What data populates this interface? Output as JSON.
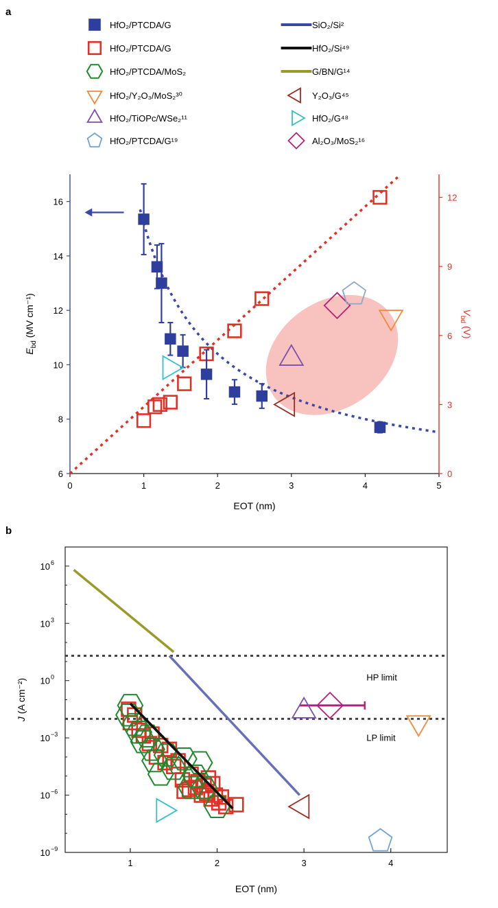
{
  "panel_a_label": "a",
  "panel_b_label": "b",
  "legend": {
    "left": [
      {
        "label": "HfO₂/PTCDA/G",
        "marker": "square-filled",
        "color": "#2e3e9c"
      },
      {
        "label": "HfO₂/PTCDA/G",
        "marker": "square-open",
        "color": "#e03127"
      },
      {
        "label": "HfO₂/PTCDA/MoS₂",
        "marker": "hexagon",
        "color": "#1e8a2c"
      },
      {
        "label": "HfO₂/Y₂O₃/MoS₂³⁰",
        "marker": "triangle-down",
        "color": "#ef8a3a"
      },
      {
        "label": "HfO₂/TiOPc/WSe₂¹¹",
        "marker": "triangle-up",
        "color": "#7a4fae"
      },
      {
        "label": "HfO₂/PTCDA/G¹⁹",
        "marker": "pentagon",
        "color": "#6fa4d4"
      }
    ],
    "right": [
      {
        "label": "SiO₂/Si²",
        "marker": "line",
        "color": "#3948a6"
      },
      {
        "label": "HfO₂/Si⁴⁹",
        "marker": "line",
        "color": "#111111"
      },
      {
        "label": "G/BN/G¹⁴",
        "marker": "line",
        "color": "#9a9a2a"
      },
      {
        "label": "Y₂O₃/G⁴⁵",
        "marker": "triangle-left",
        "color": "#9b2d22"
      },
      {
        "label": "HfO₂/G⁴⁸",
        "marker": "triangle-right",
        "color": "#33c0c8"
      },
      {
        "label": "Al₂O₃/MoS₂¹⁶",
        "marker": "diamond",
        "color": "#b0227a"
      }
    ]
  },
  "chart_data": [
    {
      "type": "scatter",
      "panel": "a",
      "xlabel": "EOT (nm)",
      "ylabel": "E_bd (MV cm⁻¹)",
      "ylabel_main": "E",
      "ylabel_sub": "bd",
      "ylabel_rest": " (MV cm⁻¹)",
      "y2label_main": "V",
      "y2label_sub": "bd",
      "y2label_rest": " (V)",
      "y2label": "V_bd (V)",
      "xlim": [
        0,
        5
      ],
      "ylim": [
        6,
        17
      ],
      "y2lim": [
        0,
        13
      ],
      "xticks": [
        0,
        1,
        2,
        3,
        4,
        5
      ],
      "xtick_labels": [
        "0",
        "1",
        "2",
        "3",
        "4",
        "5"
      ],
      "yticks": [
        6,
        8,
        10,
        12,
        14,
        16
      ],
      "ytick_labels": [
        "6",
        "8",
        "10",
        "12",
        "14",
        "16"
      ],
      "y2ticks": [
        0,
        3,
        6,
        9,
        12
      ],
      "y2tick_labels": [
        "0",
        "3",
        "6",
        "9",
        "12"
      ],
      "arrow_direction": "left",
      "series": [
        {
          "name": "HfO₂/PTCDA/G (E_bd)",
          "axis": "left",
          "x": [
            1.0,
            1.18,
            1.24,
            1.36,
            1.53,
            1.85,
            2.23,
            2.6,
            4.2
          ],
          "y": [
            15.35,
            13.6,
            13.0,
            10.95,
            10.5,
            9.65,
            9.0,
            8.85,
            7.7
          ],
          "yerr": [
            1.3,
            0.8,
            1.45,
            0.6,
            0.6,
            0.9,
            0.45,
            0.45,
            0.2
          ]
        },
        {
          "name": "HfO₂/PTCDA/G (V_bd)",
          "axis": "right",
          "x": [
            1.0,
            1.15,
            1.22,
            1.36,
            1.55,
            1.85,
            2.23,
            2.6,
            4.2
          ],
          "y": [
            2.3,
            2.9,
            3.0,
            3.1,
            3.9,
            5.2,
            6.2,
            7.6,
            12.0
          ]
        },
        {
          "name": "HfO₂/PTCDA/MoS₂ fit",
          "axis": "left",
          "style": "dotted-fit"
        },
        {
          "name": "V_bd linear fit",
          "axis": "right",
          "slope_v_per_nm": 2.9
        },
        {
          "name": "HfO₂/G⁴⁸",
          "axis": "right",
          "x": [
            1.35
          ],
          "y": [
            4.6
          ]
        },
        {
          "name": "HfO₂/TiOPc/WSe₂¹¹",
          "axis": "right",
          "x": [
            3.0
          ],
          "y": [
            5.0
          ]
        },
        {
          "name": "Y₂O₃/G⁴⁵",
          "axis": "right",
          "x": [
            2.95
          ],
          "y": [
            3.0
          ]
        },
        {
          "name": "Al₂O₃/MoS₂¹⁶",
          "axis": "right",
          "x": [
            3.62
          ],
          "y": [
            7.3
          ]
        },
        {
          "name": "HfO₂/PTCDA/G¹⁹",
          "axis": "right",
          "x": [
            3.85
          ],
          "y": [
            7.8
          ]
        },
        {
          "name": "HfO₂/Y₂O₃/MoS₂³⁰",
          "axis": "right",
          "x": [
            4.35
          ],
          "y": [
            6.8
          ]
        }
      ]
    },
    {
      "type": "scatter",
      "panel": "b",
      "xlabel": "EOT (nm)",
      "ylabel": "J (A cm⁻²)",
      "ylabel_main": "J",
      "ylabel_rest": " (A cm⁻²)",
      "yscale": "log",
      "xlim": [
        0.25,
        4.65
      ],
      "ylim_log10": [
        -9,
        7
      ],
      "xticks": [
        1,
        2,
        3,
        4
      ],
      "xtick_labels": [
        "1",
        "2",
        "3",
        "4"
      ],
      "yticks_log10": [
        -9,
        -6,
        -3,
        0,
        3,
        6
      ],
      "ytick_labels_base": [
        "10",
        "10",
        "10",
        "10",
        "10",
        "10"
      ],
      "ytick_labels_exp": [
        "−9",
        "−6",
        "−3",
        "0",
        "3",
        "6"
      ],
      "hp_limit_log10": 1.3,
      "lp_limit_log10": -2.0,
      "annotations": [
        "HP limit",
        "LP limit"
      ],
      "lines": [
        {
          "name": "G/BN/G¹⁴",
          "x": [
            0.35,
            1.5
          ],
          "log10_y": [
            5.8,
            1.5
          ]
        },
        {
          "name": "SiO₂/Si²",
          "x": [
            1.45,
            2.95
          ],
          "log10_y": [
            1.3,
            -6.0
          ]
        },
        {
          "name": "HfO₂/Si⁴⁹",
          "x": [
            1.0,
            2.18
          ],
          "log10_y": [
            -1.2,
            -6.7
          ]
        }
      ],
      "series": [
        {
          "name": "HfO₂/PTCDA/G",
          "x": [
            0.98,
            1.0,
            1.05,
            1.1,
            1.15,
            1.22,
            1.3,
            1.35,
            1.4,
            1.45,
            1.5,
            1.55,
            1.6,
            1.62,
            1.7,
            1.75,
            1.78,
            1.82,
            1.85,
            1.88,
            1.9,
            1.93,
            1.95,
            1.98,
            2.02,
            2.05,
            2.1,
            2.22,
            1.25,
            1.68
          ],
          "log10_y": [
            -1.5,
            -2.2,
            -1.8,
            -2.6,
            -2.9,
            -3.3,
            -4.0,
            -3.4,
            -4.3,
            -3.6,
            -4.5,
            -4.2,
            -5.2,
            -5.8,
            -4.9,
            -5.6,
            -5.3,
            -6.0,
            -5.5,
            -5.9,
            -5.1,
            -6.2,
            -5.4,
            -6.0,
            -6.4,
            -6.1,
            -6.6,
            -6.5,
            -2.8,
            -5.7
          ]
        },
        {
          "name": "HfO₂/PTCDA/MoS₂",
          "x": [
            0.98,
            1.0,
            1.05,
            1.1,
            1.15,
            1.2,
            1.25,
            1.28,
            1.35,
            1.42,
            1.5,
            1.62,
            1.7,
            1.75,
            1.8,
            1.85,
            2.0
          ],
          "log10_y": [
            -1.8,
            -1.3,
            -2.3,
            -2.7,
            -3.2,
            -2.9,
            -3.6,
            -4.2,
            -4.9,
            -3.9,
            -4.6,
            -4.1,
            -5.6,
            -5.0,
            -4.3,
            -5.6,
            -6.6
          ]
        },
        {
          "name": "HfO₂/G⁴⁸",
          "x": [
            1.38
          ],
          "log10_y": [
            -6.8
          ]
        },
        {
          "name": "HfO₂/TiOPc/WSe₂¹¹",
          "x": [
            3.0
          ],
          "log10_y": [
            -1.6
          ]
        },
        {
          "name": "Al₂O₃/MoS₂¹⁶",
          "x": [
            3.3
          ],
          "log10_y": [
            -1.3
          ],
          "xerr_low": 0.35,
          "xerr_high": 0.4
        },
        {
          "name": "HfO₂/Y₂O₃/MoS₂³⁰",
          "x": [
            4.32
          ],
          "log10_y": [
            -2.2
          ]
        },
        {
          "name": "Y₂O₃/G⁴⁵",
          "x": [
            2.98
          ],
          "log10_y": [
            -6.6
          ]
        },
        {
          "name": "HfO₂/PTCDA/G¹⁹",
          "x": [
            3.88
          ],
          "log10_y": [
            -8.4
          ]
        }
      ]
    }
  ]
}
